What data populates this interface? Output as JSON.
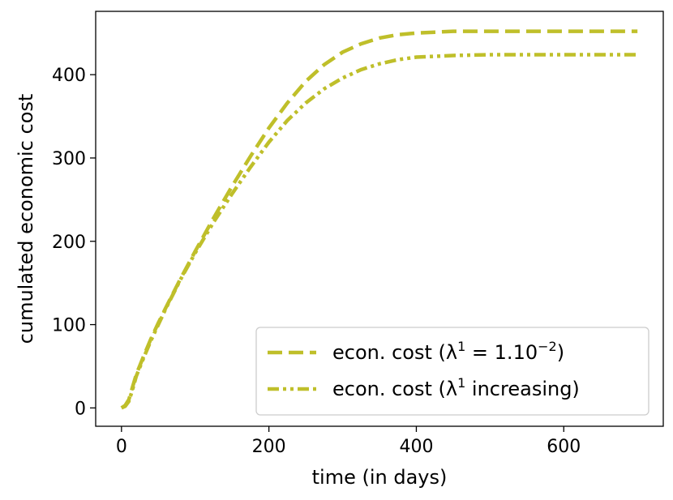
{
  "chart_data": {
    "type": "line",
    "xlabel": "time (in days)",
    "ylabel": "cumulated economic cost",
    "xlim": [
      -35,
      735
    ],
    "ylim": [
      -22,
      476
    ],
    "xticks": [
      0,
      200,
      400,
      600
    ],
    "yticks": [
      0,
      100,
      200,
      300,
      400
    ],
    "legend_position": "lower-right",
    "grid": false,
    "series": [
      {
        "name": "econ. cost (λ",
        "legend_sup": "1",
        "legend_rest": " = 1.10",
        "legend_sup2": "−2",
        "legend_close": ")",
        "color": "#bfbf2a",
        "style": "dashed",
        "x": [
          0,
          5,
          10,
          15,
          20,
          30,
          40,
          50,
          60,
          80,
          100,
          125,
          150,
          175,
          200,
          225,
          250,
          275,
          300,
          325,
          350,
          375,
          400,
          425,
          450,
          500,
          550,
          600,
          650,
          700
        ],
        "y": [
          0,
          3,
          10,
          25,
          40,
          62,
          83,
          102,
          120,
          155,
          188,
          228,
          266,
          302,
          336,
          366,
          392,
          412,
          427,
          437,
          444,
          448,
          450,
          451,
          452,
          452,
          452,
          452,
          452,
          452
        ]
      },
      {
        "name": "econ. cost (λ",
        "legend_sup": "1",
        "legend_rest": " increasing)",
        "color": "#bfbf2a",
        "style": "dashdotdot",
        "x": [
          0,
          5,
          10,
          15,
          20,
          30,
          40,
          50,
          60,
          80,
          100,
          125,
          150,
          175,
          200,
          225,
          250,
          275,
          300,
          325,
          350,
          375,
          400,
          425,
          450,
          500,
          550,
          600,
          650,
          700
        ],
        "y": [
          0,
          2,
          8,
          22,
          38,
          60,
          81,
          100,
          119,
          154,
          186,
          223,
          257,
          289,
          319,
          345,
          366,
          383,
          396,
          406,
          413,
          418,
          421,
          422,
          423,
          424,
          424,
          424,
          424,
          424
        ]
      }
    ]
  }
}
